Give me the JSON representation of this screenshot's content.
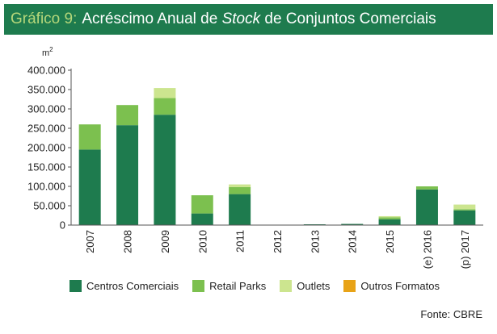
{
  "header": {
    "prefix": "Gráfico 9:",
    "title_part1": "Acréscimo Anual de",
    "title_italic": "Stock",
    "title_part2": "de Conjuntos Comerciais"
  },
  "chart_data": {
    "type": "bar",
    "stacked": true,
    "unit": "m2",
    "categories": [
      "2007",
      "2008",
      "2009",
      "2010",
      "2011",
      "2012",
      "2013",
      "2014",
      "2015",
      "(e) 2016",
      "(p) 2017"
    ],
    "series": [
      {
        "name": "Centros Comerciais",
        "color": "#1e7b4e",
        "values": [
          195000,
          258000,
          285000,
          30000,
          80000,
          0,
          2000,
          3000,
          15000,
          92000,
          38000
        ]
      },
      {
        "name": "Retail Parks",
        "color": "#7cc04f",
        "values": [
          65000,
          52000,
          43000,
          47000,
          18000,
          0,
          0,
          0,
          5000,
          8000,
          3000
        ]
      },
      {
        "name": "Outlets",
        "color": "#cce58f",
        "values": [
          0,
          0,
          26000,
          0,
          7000,
          0,
          0,
          0,
          3000,
          0,
          12000
        ]
      },
      {
        "name": "Outros Formatos",
        "color": "#e8a317",
        "values": [
          0,
          0,
          0,
          0,
          0,
          0,
          0,
          0,
          0,
          0,
          0
        ]
      }
    ],
    "ylim": [
      0,
      400000
    ],
    "yticks": [
      0,
      50000,
      100000,
      150000,
      200000,
      250000,
      300000,
      350000,
      400000
    ],
    "ytick_labels": [
      "0",
      "50.000",
      "100.000",
      "150.000",
      "200.000",
      "250.000",
      "300.000",
      "350.000",
      "400.000"
    ],
    "ylabel": "m",
    "ylabel_sup": "2",
    "legend_position": "bottom"
  },
  "source": "Fonte: CBRE"
}
